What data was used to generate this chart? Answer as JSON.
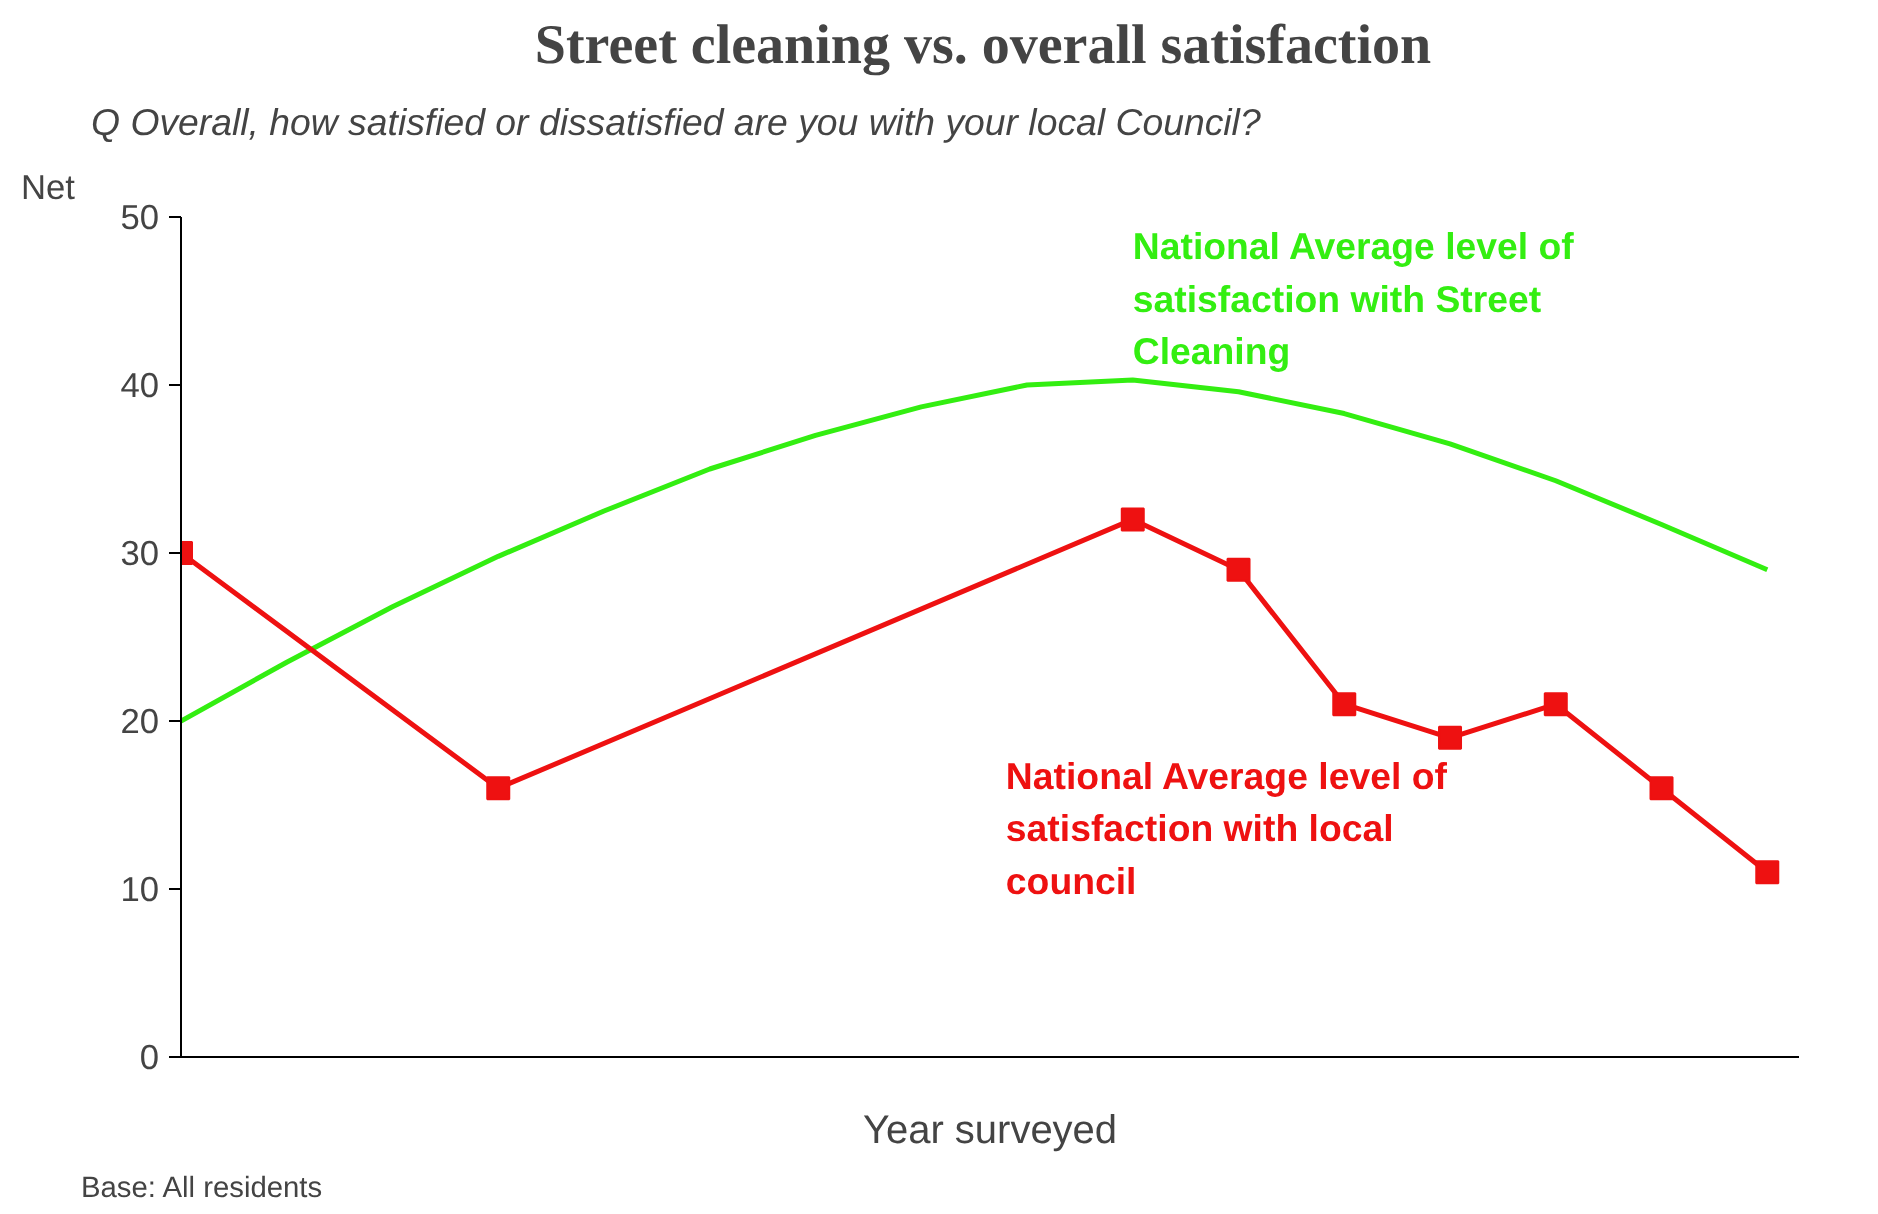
{
  "chart_data": {
    "type": "line",
    "title": "Street cleaning  vs. overall satisfaction",
    "subtitle": "Q  Overall, how satisfied or dissatisfied are you with your local Council?",
    "xlabel": "Year surveyed",
    "ylabel": "Net",
    "annotations": [
      "Base: All residents"
    ],
    "categories": [
      null,
      null,
      null,
      null,
      null,
      null,
      null,
      null,
      null,
      null,
      null,
      null,
      null,
      null,
      null,
      null
    ],
    "ylim": [
      0,
      50
    ],
    "yticks": [
      0,
      10,
      20,
      30,
      40,
      50
    ],
    "tick_labels": "y",
    "grid": false,
    "series": [
      {
        "name": "National Average level of satisfaction with Street Cleaning",
        "color": "#33ee11",
        "marker": "none",
        "values": [
          20,
          23.5,
          26.8,
          29.8,
          32.5,
          35,
          37,
          38.7,
          40,
          40.3,
          39.6,
          38.3,
          36.5,
          34.3,
          31.7,
          29
        ]
      },
      {
        "name": "National Average level of satisfaction with local council",
        "color": "#ee1111",
        "marker": "square",
        "values": [
          30,
          null,
          null,
          16,
          null,
          null,
          null,
          null,
          null,
          32,
          29,
          21,
          19,
          21,
          16,
          11
        ]
      }
    ]
  }
}
